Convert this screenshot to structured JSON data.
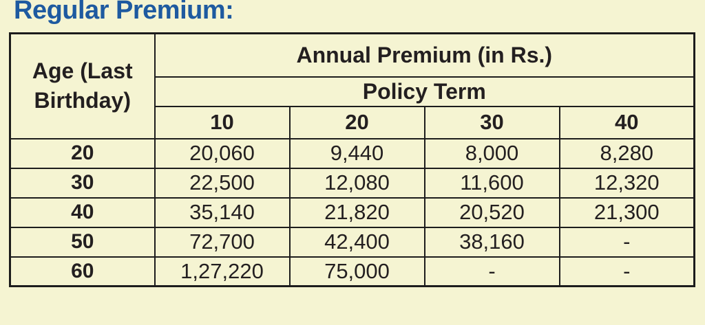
{
  "title": "Regular Premium:",
  "colors": {
    "background": "#F5F4D2",
    "title_blue": "#1E5AA0",
    "border": "#1C1C1C",
    "text": "#231F20"
  },
  "table": {
    "age_header": "Age (Last Birthday)",
    "premium_header": "Annual Premium (in Rs.)",
    "policy_term_header": "Policy Term",
    "terms": [
      "10",
      "20",
      "30",
      "40"
    ],
    "rows": [
      {
        "age": "20",
        "values": [
          "20,060",
          "9,440",
          "8,000",
          "8,280"
        ]
      },
      {
        "age": "30",
        "values": [
          "22,500",
          "12,080",
          "11,600",
          "12,320"
        ]
      },
      {
        "age": "40",
        "values": [
          "35,140",
          "21,820",
          "20,520",
          "21,300"
        ]
      },
      {
        "age": "50",
        "values": [
          "72,700",
          "42,400",
          "38,160",
          "-"
        ]
      },
      {
        "age": "60",
        "values": [
          "1,27,220",
          "75,000",
          "-",
          "-"
        ]
      }
    ]
  }
}
